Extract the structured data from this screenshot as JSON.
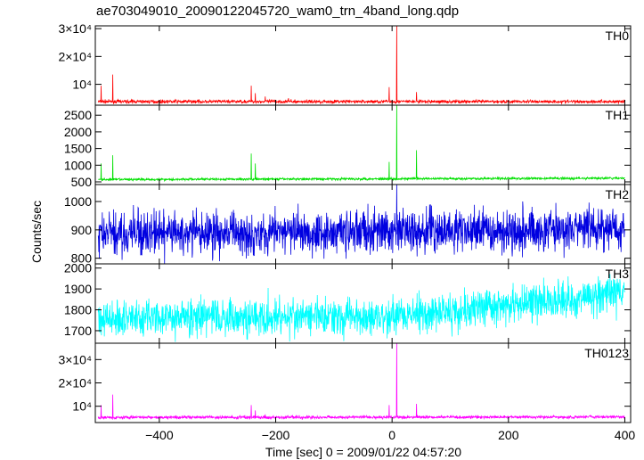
{
  "title": "ae703049010_20090122045720_wam0_trn_4band_long.qdp",
  "xlabel": "Time [sec] 0 = 2009/01/22 04:57:20",
  "ylabel": "Counts/sec",
  "chart_data": {
    "type": "line",
    "x_range": [
      -510,
      410
    ],
    "x_ticks": [
      -400,
      -200,
      0,
      200,
      400
    ],
    "x_tick_labels": [
      "−400",
      "−200",
      "0",
      "200",
      "400"
    ],
    "bin_sec": 0.5,
    "panels": [
      {
        "label": "TH0",
        "color": "#ff0000",
        "ylim": [
          2500,
          31000
        ],
        "yticks": [
          10000,
          20000,
          30000
        ],
        "ytick_labels": [
          "10⁴",
          "2×10⁴",
          "3×10⁴"
        ],
        "baseline": [
          [
            -505,
            3800
          ],
          [
            400,
            3800
          ]
        ],
        "noise": 300,
        "spikes": [
          [
            -500,
            9500
          ],
          [
            -480,
            13500
          ],
          [
            -242,
            9500
          ],
          [
            -235,
            6800
          ],
          [
            -218,
            5600
          ],
          [
            -178,
            5000
          ],
          [
            -5,
            9000
          ],
          [
            8,
            31000
          ],
          [
            42,
            7200
          ]
        ]
      },
      {
        "label": "TH1",
        "color": "#00e000",
        "ylim": [
          420,
          2800
        ],
        "yticks": [
          500,
          1000,
          1500,
          2000,
          2500
        ],
        "ytick_labels": [
          "500",
          "1000",
          "1500",
          "2000",
          "2500"
        ],
        "baseline": [
          [
            -505,
            570
          ],
          [
            400,
            610
          ]
        ],
        "noise": 18,
        "spikes": [
          [
            -500,
            1050
          ],
          [
            -480,
            1300
          ],
          [
            -242,
            1350
          ],
          [
            -235,
            1050
          ],
          [
            -5,
            1100
          ],
          [
            8,
            2800
          ],
          [
            42,
            1450
          ]
        ]
      },
      {
        "label": "TH2",
        "color": "#0000e0",
        "ylim": [
          780,
          1060
        ],
        "yticks": [
          800,
          900,
          1000
        ],
        "ytick_labels": [
          "800",
          "900",
          "1000"
        ],
        "baseline": [
          [
            -505,
            885
          ],
          [
            0,
            895
          ],
          [
            400,
            905
          ]
        ],
        "noise": 38,
        "spikes": [
          [
            8,
            1060
          ]
        ]
      },
      {
        "label": "TH3",
        "color": "#00ffff",
        "ylim": [
          1640,
          2020
        ],
        "yticks": [
          1700,
          1800,
          1900,
          2000
        ],
        "ytick_labels": [
          "1700",
          "1800",
          "1900",
          "2000"
        ],
        "baseline": [
          [
            -505,
            1760
          ],
          [
            0,
            1770
          ],
          [
            200,
            1820
          ],
          [
            400,
            1880
          ]
        ],
        "noise": 45,
        "spikes": []
      },
      {
        "label": "TH0123",
        "color": "#ff00ff",
        "ylim": [
          3000,
          37000
        ],
        "yticks": [
          10000,
          20000,
          30000
        ],
        "ytick_labels": [
          "10⁴",
          "2×10⁴",
          "3×10⁴"
        ],
        "baseline": [
          [
            -505,
            5200
          ],
          [
            400,
            5400
          ]
        ],
        "noise": 320,
        "spikes": [
          [
            -500,
            10500
          ],
          [
            -480,
            15000
          ],
          [
            -242,
            10500
          ],
          [
            -235,
            8200
          ],
          [
            -218,
            6500
          ],
          [
            -5,
            10500
          ],
          [
            8,
            37000
          ],
          [
            42,
            11000
          ]
        ]
      }
    ]
  }
}
